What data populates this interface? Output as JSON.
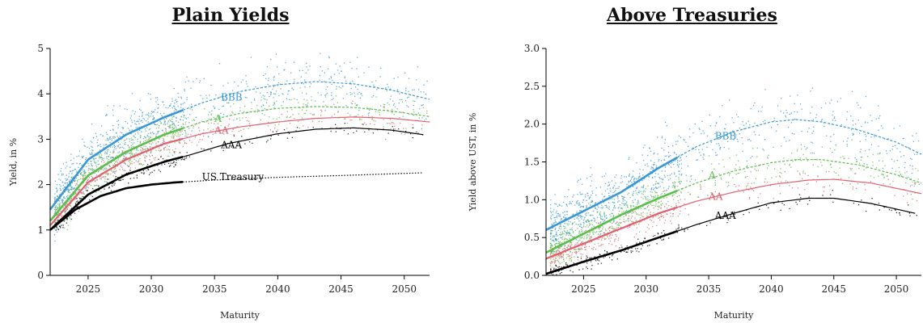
{
  "colors": {
    "BBB": "#3a97d4",
    "A": "#5bbd4a",
    "AA": "#e06070",
    "AAA": "#000000",
    "UST": "#000000"
  },
  "chart_data": [
    {
      "type": "scatter",
      "title": "Plain Yields",
      "xlabel": "Maturity",
      "ylabel": "Yield, in %",
      "xlim": [
        2022,
        2052
      ],
      "ylim": [
        0,
        5
      ],
      "xticks": [
        "2025",
        "2030",
        "2035",
        "2040",
        "2045",
        "2050"
      ],
      "yticks": [
        "0",
        "1",
        "2",
        "3",
        "4",
        "5"
      ],
      "grid": false,
      "series": [
        {
          "name": "BBB",
          "key": "BBB",
          "x": [
            2022,
            2025,
            2028,
            2031,
            2034,
            2037,
            2040,
            2043,
            2046,
            2049,
            2052
          ],
          "values": [
            1.45,
            2.55,
            3.1,
            3.48,
            3.8,
            4.05,
            4.2,
            4.27,
            4.22,
            4.08,
            3.88
          ],
          "label_at": [
            2035.5,
            3.85
          ]
        },
        {
          "name": "A",
          "key": "A",
          "x": [
            2022,
            2025,
            2028,
            2031,
            2034,
            2037,
            2040,
            2043,
            2046,
            2049,
            2052
          ],
          "values": [
            1.2,
            2.2,
            2.72,
            3.1,
            3.38,
            3.57,
            3.68,
            3.72,
            3.7,
            3.62,
            3.5
          ],
          "label_at": [
            2035,
            3.38
          ]
        },
        {
          "name": "AA",
          "key": "AA",
          "x": [
            2022,
            2025,
            2028,
            2031,
            2034,
            2037,
            2040,
            2043,
            2046,
            2049,
            2052
          ],
          "values": [
            1.1,
            2.05,
            2.55,
            2.9,
            3.12,
            3.27,
            3.38,
            3.46,
            3.49,
            3.46,
            3.38
          ],
          "label_at": [
            2035,
            3.12
          ]
        },
        {
          "name": "AAA",
          "key": "AAA",
          "x": [
            2022,
            2025,
            2028,
            2031,
            2033,
            2036,
            2040,
            2043,
            2046,
            2049,
            2051.5
          ],
          "values": [
            1.0,
            1.78,
            2.22,
            2.5,
            2.65,
            2.9,
            3.12,
            3.22,
            3.25,
            3.2,
            3.1
          ],
          "label_at": [
            2035.5,
            2.8
          ]
        },
        {
          "name": "US Treasury",
          "key": "UST",
          "x": [
            2022,
            2024,
            2026,
            2028,
            2030,
            2032,
            2035,
            2040,
            2045,
            2051.5
          ],
          "values": [
            1.0,
            1.45,
            1.75,
            1.92,
            2.0,
            2.05,
            2.1,
            2.16,
            2.2,
            2.26
          ],
          "label_at": [
            2034,
            2.1
          ]
        }
      ]
    },
    {
      "type": "scatter",
      "title": "Above Treasuries",
      "xlabel": "Maturity",
      "ylabel": "Yield above UST, in %",
      "xlim": [
        2022,
        2052
      ],
      "ylim": [
        0,
        3
      ],
      "xticks": [
        "2025",
        "2030",
        "2035",
        "2040",
        "2045",
        "2050"
      ],
      "yticks": [
        "0.0",
        "0.5",
        "1.0",
        "1.5",
        "2.0",
        "2.5",
        "3.0"
      ],
      "grid": false,
      "series": [
        {
          "name": "BBB",
          "key": "BBB",
          "x": [
            2022,
            2025,
            2028,
            2031,
            2034,
            2037,
            2040,
            2042,
            2044,
            2047,
            2050,
            2052
          ],
          "values": [
            0.6,
            0.85,
            1.1,
            1.42,
            1.7,
            1.9,
            2.03,
            2.06,
            2.03,
            1.92,
            1.76,
            1.6
          ],
          "label_at": [
            2035.5,
            1.8
          ]
        },
        {
          "name": "A",
          "key": "A",
          "x": [
            2022,
            2025,
            2028,
            2031,
            2034,
            2037,
            2040,
            2042,
            2044,
            2047,
            2050,
            2052
          ],
          "values": [
            0.3,
            0.55,
            0.8,
            1.02,
            1.22,
            1.38,
            1.49,
            1.53,
            1.53,
            1.46,
            1.33,
            1.22
          ],
          "label_at": [
            2035,
            1.28
          ]
        },
        {
          "name": "AA",
          "key": "AA",
          "x": [
            2022,
            2025,
            2028,
            2031,
            2034,
            2037,
            2040,
            2043,
            2045,
            2048,
            2052
          ],
          "values": [
            0.22,
            0.42,
            0.62,
            0.82,
            0.98,
            1.1,
            1.2,
            1.26,
            1.27,
            1.22,
            1.08
          ],
          "label_at": [
            2035,
            1.0
          ]
        },
        {
          "name": "AAA",
          "key": "AAA",
          "x": [
            2022,
            2025,
            2028,
            2031,
            2034,
            2037,
            2040,
            2043,
            2045,
            2048,
            2051.5
          ],
          "values": [
            0.02,
            0.18,
            0.33,
            0.5,
            0.67,
            0.82,
            0.96,
            1.02,
            1.02,
            0.95,
            0.82
          ],
          "label_at": [
            2035.5,
            0.75
          ]
        }
      ]
    }
  ]
}
